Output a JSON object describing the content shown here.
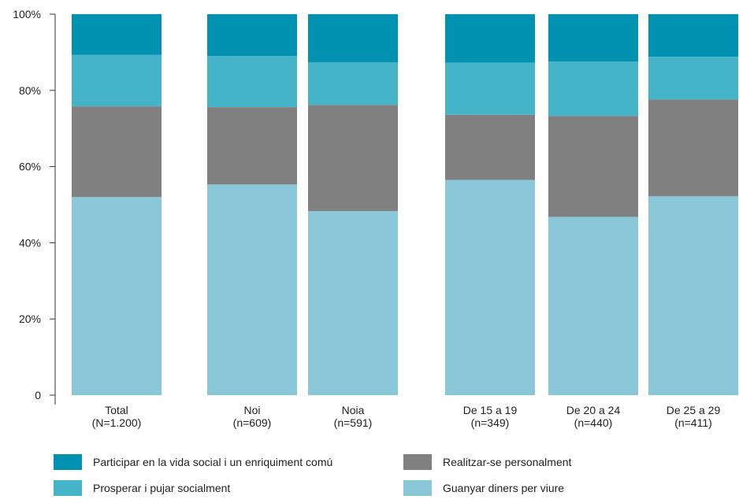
{
  "chart_data": {
    "type": "bar",
    "stacked": true,
    "categories": [
      {
        "line1": "Total",
        "line2": "(N=1.200)"
      },
      {
        "line1": "Noi",
        "line2": "(n=609)"
      },
      {
        "line1": "Noia",
        "line2": "(n=591)"
      },
      {
        "line1": "De 15 a 19",
        "line2": "(n=349)"
      },
      {
        "line1": "De 20 a 24",
        "line2": "(n=440)"
      },
      {
        "line1": "De 25 a 29",
        "line2": "(n=411)"
      }
    ],
    "series": [
      {
        "name": "Guanyar diners per viure",
        "color": "#8ac8d9",
        "values": [
          52,
          55.3,
          48.3,
          56.5,
          46.8,
          52.2
        ]
      },
      {
        "name": "Realitzar-se personalment",
        "color": "#808080",
        "values": [
          23.8,
          20.3,
          27.9,
          17.1,
          26.5,
          25.4
        ]
      },
      {
        "name": "Prosperar i pujar socialment",
        "color": "#45b3c8",
        "values": [
          13.5,
          13.4,
          11.2,
          13.7,
          14.3,
          11.2
        ]
      },
      {
        "name": "Participar en la vida social i un enriquiment comú",
        "color": "#0191b1",
        "values": [
          10.7,
          11,
          12.6,
          12.7,
          12.4,
          11.2
        ]
      }
    ],
    "yticks": [
      "0",
      "20%",
      "40%",
      "60%",
      "80%",
      "100%"
    ],
    "ylim": [
      0,
      100
    ],
    "legend_order": [
      3,
      1,
      2,
      0
    ],
    "grid": false,
    "legend_position": "bottom"
  }
}
